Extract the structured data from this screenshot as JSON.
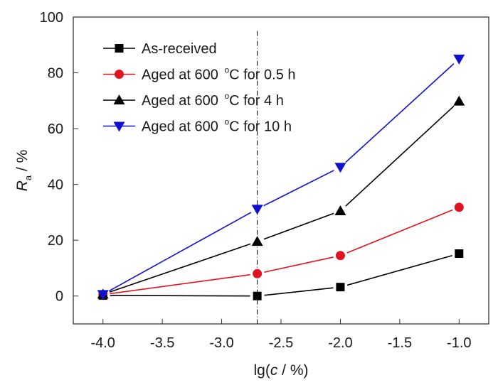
{
  "chart_data": {
    "type": "line",
    "title": "",
    "xlabel": {
      "prefix": "lg(",
      "italic": "c",
      "suffix": " / %)"
    },
    "ylabel": {
      "italic": "R",
      "subscript": "a",
      "suffix": " / %"
    },
    "xlim": [
      -4.25,
      -0.75
    ],
    "ylim": [
      -10,
      100
    ],
    "xticks": [
      -4.0,
      -3.5,
      -3.0,
      -2.5,
      -2.0,
      -1.5,
      -1.0
    ],
    "xtick_labels": [
      "-4.0",
      "-3.5",
      "-3.0",
      "-2.5",
      "-2.0",
      "-1.5",
      "-1.0"
    ],
    "yticks": [
      0,
      20,
      40,
      60,
      80,
      100
    ],
    "ytick_labels": [
      "0",
      "20",
      "40",
      "60",
      "80",
      "100"
    ],
    "grid": false,
    "legend_position": "top-left",
    "reference_line": {
      "x": -2.7,
      "style": "dash-dot",
      "color": "#000000"
    },
    "x": [
      -4.0,
      -2.7,
      -2.0,
      -1.0
    ],
    "series": [
      {
        "name": "As-received",
        "label_parts": [
          "As-received"
        ],
        "color": "#000000",
        "marker": "square",
        "values": [
          0.2,
          0.0,
          3.2,
          15.2
        ]
      },
      {
        "name": "Aged at 600 °C for 0.5 h",
        "label_parts": [
          "Aged at 600 ",
          "o",
          "C for 0.5 h"
        ],
        "color": "#e0141e",
        "marker": "circle",
        "values": [
          0.5,
          8.0,
          14.5,
          31.8
        ]
      },
      {
        "name": "Aged at 600 °C for 4 h",
        "label_parts": [
          "Aged at 600 ",
          "o",
          "C for 4 h"
        ],
        "color": "#000000",
        "marker": "triangle-up",
        "values": [
          0.6,
          19.5,
          30.5,
          69.8
        ]
      },
      {
        "name": "Aged at 600 °C for 10 h",
        "label_parts": [
          "Aged at 600 ",
          "o",
          "C for 10 h"
        ],
        "color": "#1010d0",
        "marker": "triangle-down",
        "values": [
          0.6,
          31.2,
          46.2,
          85.0
        ]
      }
    ]
  }
}
